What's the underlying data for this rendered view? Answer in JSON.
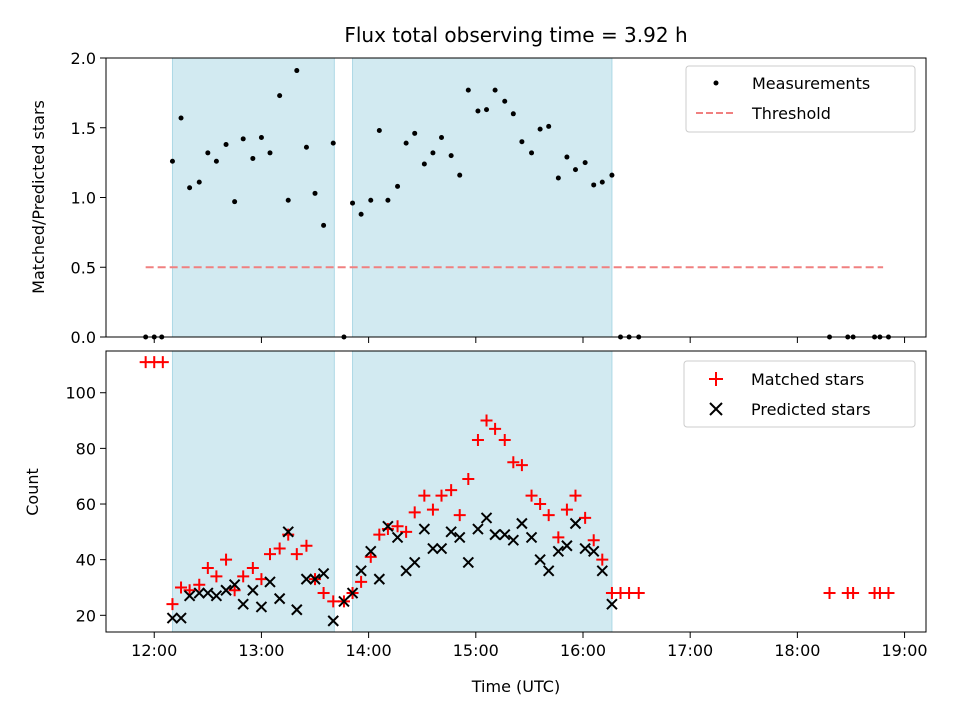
{
  "chart_data": {
    "title": "Flux total observing time = 3.92 h",
    "xlabel": "Time (UTC)",
    "x_unit": "hours UTC",
    "xlim": [
      11.55,
      19.2
    ],
    "x_ticks": [
      {
        "v": 12,
        "label": "12:00"
      },
      {
        "v": 13,
        "label": "13:00"
      },
      {
        "v": 14,
        "label": "14:00"
      },
      {
        "v": 15,
        "label": "15:00"
      },
      {
        "v": 16,
        "label": "16:00"
      },
      {
        "v": 17,
        "label": "17:00"
      },
      {
        "v": 18,
        "label": "18:00"
      },
      {
        "v": 19,
        "label": "19:00"
      }
    ],
    "shaded_intervals": [
      [
        12.17,
        13.68
      ],
      [
        13.85,
        16.27
      ]
    ],
    "shade_color": "#add8e6",
    "panels": [
      {
        "type": "scatter",
        "ylabel": "Matched/Predicted stars",
        "ylim": [
          0,
          2.0
        ],
        "y_ticks": [
          {
            "v": 0,
            "label": "0.0"
          },
          {
            "v": 0.5,
            "label": "0.5"
          },
          {
            "v": 1.0,
            "label": "1.0"
          },
          {
            "v": 1.5,
            "label": "1.5"
          },
          {
            "v": 2.0,
            "label": "2.0"
          }
        ],
        "legend": {
          "position": "upper right",
          "entries": [
            "Measurements",
            "Threshold"
          ]
        },
        "threshold": {
          "y": 0.5,
          "x_range": [
            11.92,
            18.8
          ],
          "color": "#f08080"
        },
        "measurements": {
          "x": [
            11.92,
            12.0,
            12.07,
            12.17,
            12.25,
            12.33,
            12.42,
            12.5,
            12.58,
            12.67,
            12.75,
            12.83,
            12.92,
            13.0,
            13.08,
            13.17,
            13.25,
            13.33,
            13.42,
            13.5,
            13.58,
            13.67,
            13.77,
            13.85,
            13.93,
            14.02,
            14.1,
            14.18,
            14.27,
            14.35,
            14.43,
            14.52,
            14.6,
            14.68,
            14.77,
            14.85,
            14.93,
            15.02,
            15.1,
            15.18,
            15.27,
            15.35,
            15.43,
            15.52,
            15.6,
            15.68,
            15.77,
            15.85,
            15.93,
            16.02,
            16.1,
            16.18,
            16.27,
            16.35,
            16.43,
            16.52,
            18.3,
            18.47,
            18.52,
            18.72,
            18.77,
            18.85
          ],
          "y": [
            0,
            0,
            0,
            1.26,
            1.57,
            1.07,
            1.11,
            1.32,
            1.26,
            1.38,
            0.97,
            1.42,
            1.28,
            1.43,
            1.32,
            1.73,
            0.98,
            1.91,
            1.36,
            1.03,
            0.8,
            1.39,
            0,
            0.96,
            0.88,
            0.98,
            1.48,
            0.98,
            1.08,
            1.39,
            1.46,
            1.24,
            1.32,
            1.43,
            1.3,
            1.16,
            1.77,
            1.62,
            1.63,
            1.77,
            1.69,
            1.6,
            1.4,
            1.32,
            1.49,
            1.51,
            1.14,
            1.29,
            1.2,
            1.25,
            1.09,
            1.11,
            1.16,
            0,
            0,
            0,
            0,
            0,
            0,
            0,
            0,
            0
          ]
        }
      },
      {
        "type": "scatter",
        "ylabel": "Count",
        "ylim": [
          14,
          115
        ],
        "y_ticks": [
          {
            "v": 20,
            "label": "20"
          },
          {
            "v": 40,
            "label": "40"
          },
          {
            "v": 60,
            "label": "60"
          },
          {
            "v": 80,
            "label": "80"
          },
          {
            "v": 100,
            "label": "100"
          }
        ],
        "legend": {
          "position": "upper right",
          "entries": [
            "Matched stars",
            "Predicted stars"
          ]
        },
        "series": [
          {
            "name": "Matched stars",
            "marker": "plus",
            "color": "#ff0000",
            "x": [
              11.92,
              12.0,
              12.08,
              12.17,
              12.25,
              12.33,
              12.42,
              12.5,
              12.58,
              12.67,
              12.75,
              12.83,
              12.92,
              13.0,
              13.08,
              13.17,
              13.25,
              13.33,
              13.42,
              13.5,
              13.58,
              13.67,
              13.77,
              13.85,
              13.93,
              14.02,
              14.1,
              14.18,
              14.27,
              14.35,
              14.43,
              14.52,
              14.6,
              14.68,
              14.77,
              14.85,
              14.93,
              15.02,
              15.1,
              15.18,
              15.27,
              15.35,
              15.43,
              15.52,
              15.6,
              15.68,
              15.77,
              15.85,
              15.93,
              16.02,
              16.1,
              16.18,
              16.27,
              16.35,
              16.43,
              16.52,
              18.3,
              18.47,
              18.52,
              18.72,
              18.77,
              18.85
            ],
            "y": [
              111,
              111,
              111,
              24,
              30,
              29,
              31,
              37,
              34,
              40,
              29,
              34,
              37,
              33,
              42,
              44,
              49,
              42,
              45,
              33,
              28,
              25,
              25,
              28,
              32,
              41,
              49,
              51,
              52,
              50,
              57,
              63,
              58,
              63,
              65,
              56,
              69,
              83,
              90,
              87,
              83,
              75,
              74,
              63,
              60,
              56,
              48,
              58,
              63,
              55,
              47,
              40,
              28,
              28,
              28,
              28,
              28,
              28,
              28,
              28,
              28,
              28
            ]
          },
          {
            "name": "Predicted stars",
            "marker": "x",
            "color": "#000000",
            "x": [
              12.17,
              12.25,
              12.33,
              12.42,
              12.5,
              12.58,
              12.67,
              12.75,
              12.83,
              12.92,
              13.0,
              13.08,
              13.17,
              13.25,
              13.33,
              13.42,
              13.5,
              13.58,
              13.67,
              13.77,
              13.85,
              13.93,
              14.02,
              14.1,
              14.18,
              14.27,
              14.35,
              14.43,
              14.52,
              14.6,
              14.68,
              14.77,
              14.85,
              14.93,
              15.02,
              15.1,
              15.18,
              15.27,
              15.35,
              15.43,
              15.52,
              15.6,
              15.68,
              15.77,
              15.85,
              15.93,
              16.02,
              16.1,
              16.18,
              16.27
            ],
            "y": [
              19,
              19,
              27,
              28,
              28,
              27,
              29,
              31,
              24,
              29,
              23,
              32,
              26,
              50,
              22,
              33,
              33,
              35,
              18,
              25,
              28,
              36,
              43,
              33,
              52,
              48,
              36,
              39,
              51,
              44,
              44,
              50,
              48,
              39,
              51,
              55,
              49,
              49,
              47,
              53,
              48,
              40,
              36,
              43,
              45,
              53,
              44,
              43,
              36,
              24
            ]
          }
        ]
      }
    ]
  }
}
